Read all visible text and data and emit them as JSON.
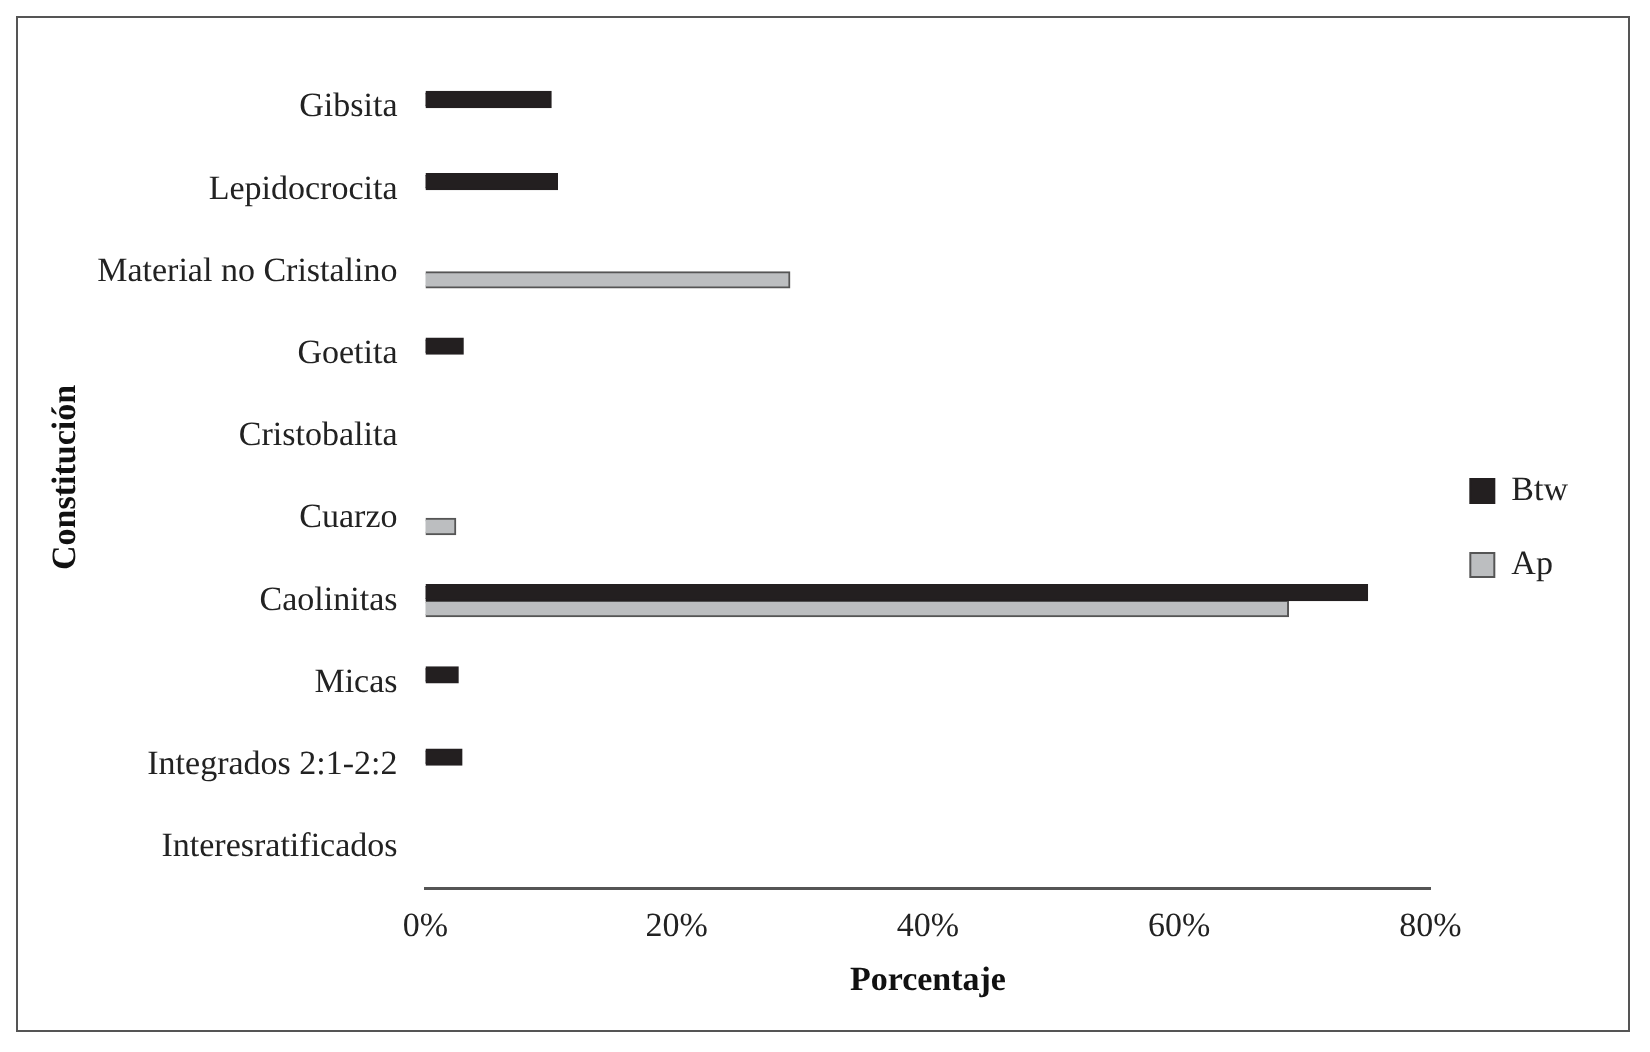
{
  "chart_data": {
    "type": "bar",
    "orientation": "horizontal",
    "xlabel": "Porcentaje",
    "ylabel": "Constitución",
    "categories": [
      "Gibsita",
      "Lepidocrocita",
      "Material no Cristalino",
      "Goetita",
      "Cristobalita",
      "Cuarzo",
      "Caolinitas",
      "Micas",
      "Integrados 2:1-2:2",
      "Interesratificados"
    ],
    "series": [
      {
        "name": "Btw",
        "color": "#231f20",
        "values": [
          10,
          10.5,
          0,
          3,
          0,
          0,
          75,
          2.6,
          2.9,
          0
        ]
      },
      {
        "name": "Ap",
        "color": "#bcbec0",
        "values": [
          0,
          0,
          29,
          0,
          0,
          2.4,
          68.7,
          0,
          0,
          0
        ]
      }
    ],
    "xlim": [
      0,
      80
    ],
    "xticks": [
      {
        "value": 0,
        "label": "0%"
      },
      {
        "value": 20,
        "label": "20%"
      },
      {
        "value": 40,
        "label": "40%"
      },
      {
        "value": 60,
        "label": "60%"
      },
      {
        "value": 80,
        "label": "80%"
      }
    ],
    "grid": false,
    "legend": "right"
  }
}
